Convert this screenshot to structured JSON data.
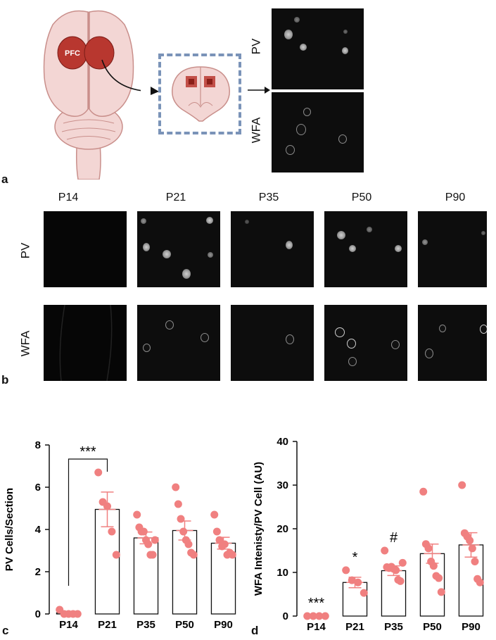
{
  "figure": {
    "panel_a": {
      "letter": "a",
      "region_label": "PFC",
      "stain_labels": [
        "PV",
        "WFA"
      ]
    },
    "panel_b": {
      "letter": "b",
      "ages": [
        "P14",
        "P21",
        "P35",
        "P50",
        "P90"
      ],
      "row_labels": [
        "PV",
        "WFA"
      ]
    },
    "panel_c": {
      "letter": "c"
    },
    "panel_d": {
      "letter": "d"
    }
  },
  "colors": {
    "dot": "#f08080",
    "bar_edge": "#111111",
    "brain_fill": "#f3d6d4",
    "pfc": "#b8372f",
    "box": "#7a93b8"
  },
  "chart_data": [
    {
      "type": "bar",
      "ylabel": "PV Cells/Section",
      "categories": [
        "P14",
        "P21",
        "P35",
        "P50",
        "P90"
      ],
      "values": [
        0.05,
        4.95,
        3.6,
        3.95,
        3.35
      ],
      "sem": [
        0.05,
        0.82,
        0.28,
        0.45,
        0.28
      ],
      "points": [
        [
          0.2,
          0.0,
          0.0,
          0.0,
          0.0
        ],
        [
          6.7,
          5.3,
          5.1,
          3.9,
          2.8
        ],
        [
          4.7,
          4.1,
          3.9,
          3.9,
          3.5,
          3.3,
          2.8,
          2.8,
          3.5
        ],
        [
          6.0,
          5.2,
          4.5,
          3.9,
          3.5,
          3.3,
          2.9,
          2.8
        ],
        [
          4.7,
          3.9,
          3.5,
          3.2,
          3.3,
          2.8,
          2.9,
          2.8
        ]
      ],
      "ylim": [
        0,
        8
      ],
      "yticks": [
        0,
        2,
        4,
        6,
        8
      ],
      "annotations": [
        {
          "category": "P14",
          "text": "***",
          "bracket_to": "P21"
        }
      ]
    },
    {
      "type": "bar",
      "ylabel": "WFA Intenisty/PV Cell (AU)",
      "categories": [
        "P14",
        "P21",
        "P35",
        "P50",
        "P90"
      ],
      "values": [
        0.0,
        7.7,
        10.4,
        14.3,
        16.3
      ],
      "sem": [
        0.0,
        1.2,
        1.1,
        2.2,
        2.8
      ],
      "points": [
        [
          0.0,
          0.0,
          0.0,
          0.0
        ],
        [
          10.5,
          8.2,
          7.7,
          5.3
        ],
        [
          15.0,
          11.2,
          11.0,
          11.3,
          10.8,
          10.5,
          8.3,
          8.0,
          12.2
        ],
        [
          28.5,
          16.5,
          15.5,
          12.5,
          11.5,
          9.2,
          8.7,
          5.5
        ],
        [
          30.0,
          19.0,
          18.2,
          17.3,
          15.5,
          12.5,
          8.5,
          7.7
        ]
      ],
      "ylim": [
        0,
        40
      ],
      "yticks": [
        0,
        10,
        20,
        30,
        40
      ],
      "annotations": [
        {
          "category": "P14",
          "text": "***"
        },
        {
          "category": "P21",
          "text": "*"
        },
        {
          "category": "P35",
          "text": "#"
        }
      ]
    }
  ]
}
